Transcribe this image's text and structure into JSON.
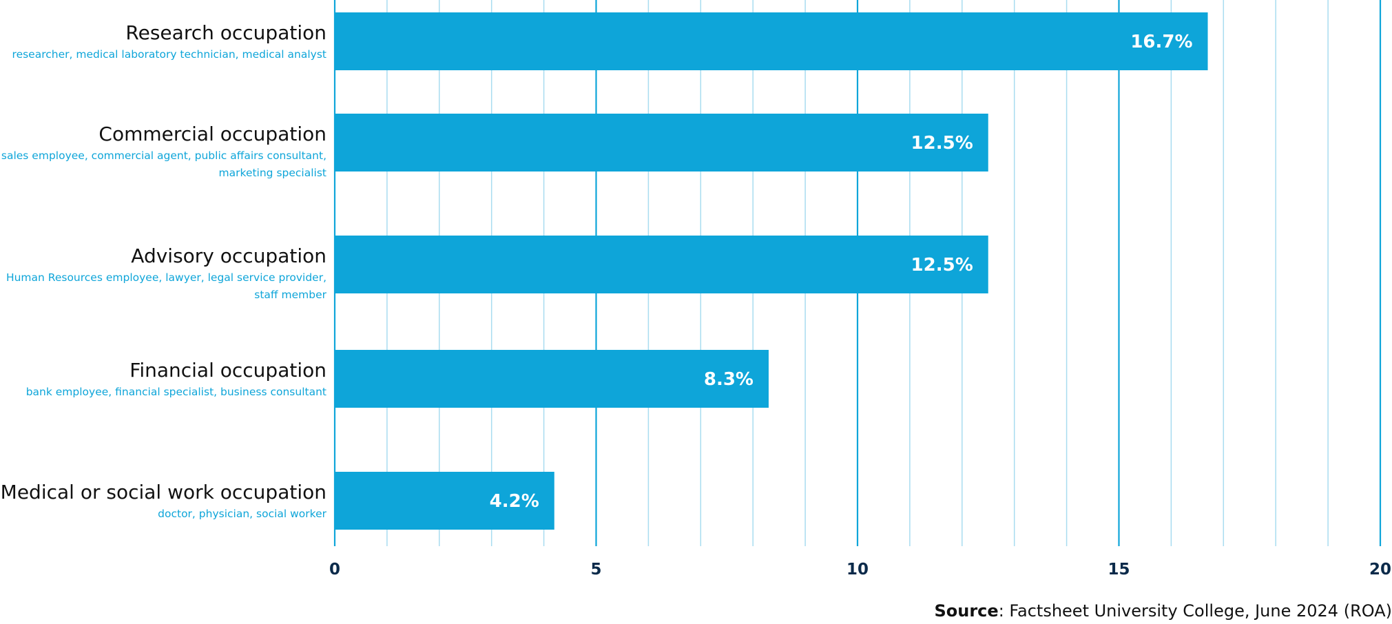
{
  "chart_data": {
    "type": "bar",
    "orientation": "horizontal",
    "categories": [
      "Research occupation",
      "Commercial occupation",
      "Advisory occupation",
      "Financial occupation",
      "Medical or social work occupation"
    ],
    "subtitles": [
      [
        "researcher, medical laboratory technician, medical analyst"
      ],
      [
        "sales employee, commercial agent, public affairs consultant,",
        "marketing specialist"
      ],
      [
        "Human Resources employee, lawyer, legal service provider,",
        "staff member"
      ],
      [
        "bank employee, financial specialist, business consultant"
      ],
      [
        "doctor, physician, social worker"
      ]
    ],
    "values": [
      16.7,
      12.5,
      12.5,
      8.3,
      4.2
    ],
    "value_labels": [
      "16.7%",
      "12.5%",
      "12.5%",
      "8.3%",
      "4.2%"
    ],
    "xlim": [
      0,
      20
    ],
    "xticks": [
      "0",
      "5",
      "10",
      "15",
      "20"
    ],
    "minor_grid_step": 1,
    "grid": true,
    "bar_color": "#0ea5d9",
    "major_grid_color": "#0ea5d9",
    "minor_grid_color": "#a8dcf0",
    "title": "",
    "xlabel": "",
    "ylabel": ""
  },
  "source": {
    "label": "Source",
    "text": ": Factsheet University College, June 2024 (ROA)"
  }
}
